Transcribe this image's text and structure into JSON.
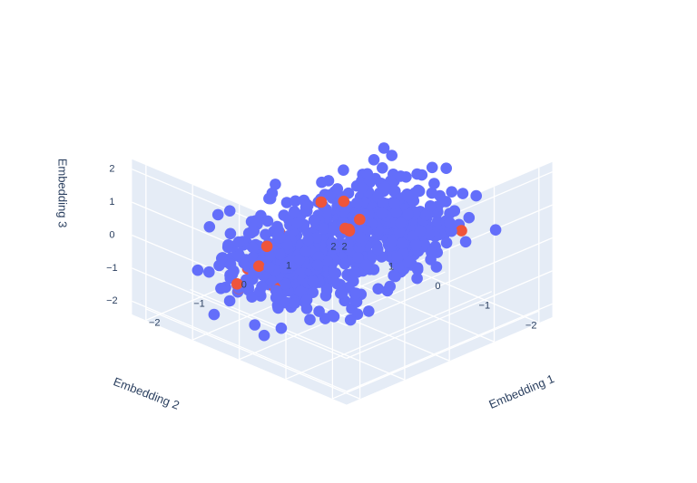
{
  "chart_data": {
    "type": "scatter",
    "subtype": "3d-scatter",
    "axes": {
      "x": {
        "label": "Embedding 1",
        "ticks": [
          "−2",
          "−1",
          "0",
          "1",
          "2"
        ],
        "range": [
          -2.3,
          2.3
        ]
      },
      "y": {
        "label": "Embedding 2",
        "ticks": [
          "−2",
          "−1",
          "0",
          "1",
          "2"
        ],
        "range": [
          -2.3,
          2.3
        ]
      },
      "z": {
        "label": "Embedding 3",
        "ticks": [
          "−2",
          "−1",
          "0",
          "1",
          "2"
        ],
        "range": [
          -2.4,
          2.3
        ]
      }
    },
    "grid": true,
    "legend": "none",
    "series": [
      {
        "color": "#636efa",
        "point_count": 800
      },
      {
        "color": "#ef553b",
        "points": [
          [
            -1.6,
            -0.2,
            1.15
          ],
          [
            -1.5,
            -0.3,
            0.95
          ],
          [
            -1.9,
            0.2,
            0.0
          ],
          [
            -2.0,
            0.3,
            -0.6
          ],
          [
            -1.4,
            0.1,
            -0.8
          ],
          [
            -0.8,
            -0.2,
            0.8
          ],
          [
            -0.6,
            0.4,
            0.45
          ],
          [
            0.6,
            0.2,
            0.05
          ],
          [
            0.9,
            0.8,
            -0.75
          ],
          [
            1.1,
            0.9,
            -1.0
          ],
          [
            1.3,
            1.1,
            -1.2
          ],
          [
            1.4,
            1.2,
            -1.3
          ],
          [
            1.2,
            1.6,
            -0.6
          ],
          [
            1.6,
            1.5,
            -0.75
          ],
          [
            1.0,
            -1.6,
            0.55
          ],
          [
            -0.4,
            1.4,
            -1.5
          ],
          [
            0.3,
            1.9,
            -1.6
          ],
          [
            -1.2,
            1.1,
            -1.4
          ]
        ]
      }
    ]
  }
}
